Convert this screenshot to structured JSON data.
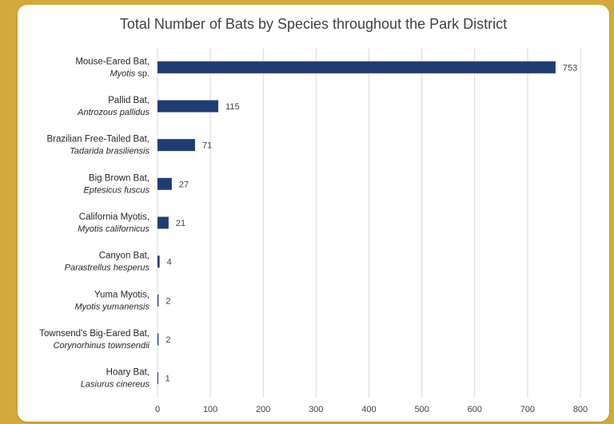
{
  "chart_data": {
    "type": "bar",
    "orientation": "horizontal",
    "title": "Total Number of Bats by Species throughout the Park District",
    "categories": [
      {
        "name": "Mouse-Eared Bat,",
        "sci": "Myotis",
        "sci_suffix": " sp."
      },
      {
        "name": "Pallid Bat,",
        "sci": "Antrozous pallidus",
        "sci_suffix": ""
      },
      {
        "name": "Brazilian Free-Tailed Bat,",
        "sci": "Tadarida brasiliensis",
        "sci_suffix": ""
      },
      {
        "name": "Big Brown Bat,",
        "sci": "Eptesicus fuscus",
        "sci_suffix": ""
      },
      {
        "name": "California Myotis,",
        "sci": "Myotis californicus",
        "sci_suffix": ""
      },
      {
        "name": "Canyon Bat,",
        "sci": "Parastrellus hesperus",
        "sci_suffix": ""
      },
      {
        "name": "Yuma Myotis,",
        "sci": "Myotis yumanensis",
        "sci_suffix": ""
      },
      {
        "name": "Townsend's Big-Eared Bat,",
        "sci": "Corynorhinus townsendii",
        "sci_suffix": ""
      },
      {
        "name": "Hoary Bat,",
        "sci": "Lasiurus cinereus",
        "sci_suffix": ""
      }
    ],
    "values": [
      753,
      115,
      71,
      27,
      21,
      4,
      2,
      2,
      1
    ],
    "xlim": [
      0,
      800
    ],
    "xticks": [
      0,
      100,
      200,
      300,
      400,
      500,
      600,
      700,
      800
    ],
    "grid": true,
    "legend": "none",
    "colors": {
      "bar": "#1f3d73",
      "page_background": "#d4a93c"
    }
  }
}
